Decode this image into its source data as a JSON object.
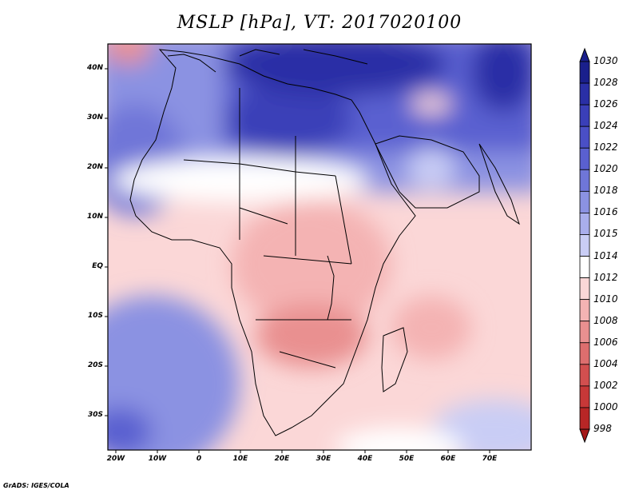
{
  "title": "MSLP [hPa], VT: 2017020100",
  "credit": "GrADS: IGES/COLA",
  "lat_labels": [
    "40N",
    "30N",
    "20N",
    "10N",
    "EQ",
    "10S",
    "20S",
    "30S"
  ],
  "lon_labels": [
    "20W",
    "10W",
    "0",
    "10E",
    "20E",
    "30E",
    "40E",
    "50E",
    "60E",
    "70E"
  ],
  "colorbar": {
    "levels": [
      "1030",
      "1028",
      "1026",
      "1024",
      "1022",
      "1020",
      "1018",
      "1016",
      "1015",
      "1014",
      "1012",
      "1010",
      "1008",
      "1006",
      "1004",
      "1002",
      "1000",
      "998"
    ],
    "colors": [
      "#1a1f8c",
      "#2a2fa6",
      "#3a3fb8",
      "#4a4fc6",
      "#5a60d0",
      "#6f76d8",
      "#8b92e2",
      "#a9aeec",
      "#c9cdf5",
      "#ffffff",
      "#fbd7d7",
      "#f4b3b3",
      "#e99090",
      "#dd6e6e",
      "#d24f4f",
      "#c73838",
      "#b72626",
      "#a51818"
    ]
  },
  "map_colors": {
    "high_dark": "#2a2fa6",
    "high_mid": "#5a60d0",
    "high_light": "#a9aeec",
    "neutral": "#ffffff",
    "low_light": "#fbd7d7",
    "low_mid": "#f4b3b3",
    "low_dark": "#e99090"
  }
}
